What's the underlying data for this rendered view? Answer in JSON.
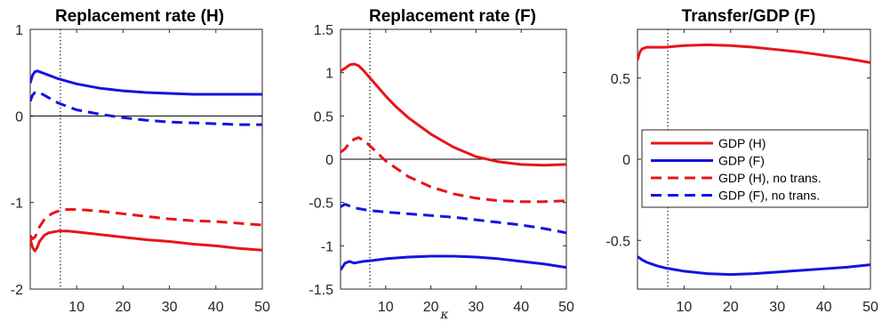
{
  "chart_data": [
    {
      "type": "line",
      "title": "Replacement rate (H)",
      "xlim": [
        0,
        50
      ],
      "ylim": [
        -2,
        1
      ],
      "xticks": [
        10,
        20,
        30,
        40,
        50
      ],
      "yticks": [
        -2,
        -1,
        0,
        1
      ],
      "vline": 6.5,
      "zero_line": true,
      "series": [
        {
          "legend_ref": 0,
          "color": "#e8141a",
          "dash": false,
          "x": [
            0,
            0.5,
            1,
            1.5,
            2,
            3,
            4,
            5,
            6,
            8,
            10,
            15,
            20,
            25,
            30,
            35,
            40,
            45,
            50
          ],
          "y": [
            -1.42,
            -1.52,
            -1.56,
            -1.52,
            -1.45,
            -1.38,
            -1.35,
            -1.34,
            -1.33,
            -1.33,
            -1.34,
            -1.37,
            -1.4,
            -1.43,
            -1.45,
            -1.48,
            -1.5,
            -1.53,
            -1.55
          ]
        },
        {
          "legend_ref": 1,
          "color": "#1414e0",
          "dash": false,
          "x": [
            0,
            0.5,
            1,
            1.5,
            2,
            3,
            4,
            5,
            6,
            8,
            10,
            15,
            20,
            25,
            30,
            35,
            40,
            45,
            50
          ],
          "y": [
            0.38,
            0.47,
            0.51,
            0.52,
            0.51,
            0.49,
            0.47,
            0.45,
            0.43,
            0.4,
            0.37,
            0.32,
            0.29,
            0.27,
            0.26,
            0.25,
            0.25,
            0.25,
            0.25
          ]
        },
        {
          "legend_ref": 2,
          "color": "#e8141a",
          "dash": true,
          "x": [
            0,
            0.5,
            1,
            1.5,
            2,
            3,
            4,
            5,
            6,
            8,
            10,
            15,
            20,
            25,
            30,
            35,
            40,
            45,
            50
          ],
          "y": [
            -1.38,
            -1.42,
            -1.4,
            -1.35,
            -1.28,
            -1.2,
            -1.15,
            -1.12,
            -1.1,
            -1.08,
            -1.08,
            -1.1,
            -1.13,
            -1.16,
            -1.19,
            -1.21,
            -1.22,
            -1.24,
            -1.26
          ]
        },
        {
          "legend_ref": 3,
          "color": "#1414e0",
          "dash": true,
          "x": [
            0,
            0.5,
            1,
            1.5,
            2,
            3,
            4,
            5,
            6,
            8,
            10,
            15,
            20,
            25,
            30,
            35,
            40,
            45,
            50
          ],
          "y": [
            0.17,
            0.24,
            0.27,
            0.28,
            0.27,
            0.24,
            0.21,
            0.18,
            0.15,
            0.11,
            0.07,
            0.02,
            -0.02,
            -0.05,
            -0.07,
            -0.08,
            -0.09,
            -0.1,
            -0.1
          ]
        }
      ]
    },
    {
      "type": "line",
      "title": "Replacement rate (F)",
      "xlim": [
        0,
        50
      ],
      "ylim": [
        -1.5,
        1.5
      ],
      "xticks": [
        10,
        20,
        30,
        40,
        50
      ],
      "yticks": [
        -1.5,
        -1,
        -0.5,
        0,
        0.5,
        1,
        1.5
      ],
      "extra_xtick_label": "κ",
      "vline": 6.5,
      "zero_line": true,
      "series": [
        {
          "legend_ref": 0,
          "color": "#e8141a",
          "dash": false,
          "x": [
            0,
            1,
            2,
            3,
            4,
            5,
            6,
            8,
            10,
            12,
            15,
            20,
            25,
            30,
            35,
            40,
            45,
            50
          ],
          "y": [
            1.02,
            1.05,
            1.09,
            1.1,
            1.08,
            1.03,
            0.97,
            0.85,
            0.73,
            0.62,
            0.48,
            0.29,
            0.14,
            0.03,
            -0.03,
            -0.06,
            -0.07,
            -0.06
          ]
        },
        {
          "legend_ref": 1,
          "color": "#1414e0",
          "dash": false,
          "x": [
            0,
            1,
            2,
            3,
            4,
            5,
            7,
            10,
            15,
            20,
            25,
            30,
            35,
            40,
            45,
            50
          ],
          "y": [
            -1.28,
            -1.2,
            -1.18,
            -1.2,
            -1.19,
            -1.18,
            -1.17,
            -1.15,
            -1.13,
            -1.12,
            -1.12,
            -1.13,
            -1.15,
            -1.18,
            -1.21,
            -1.25
          ]
        },
        {
          "legend_ref": 2,
          "color": "#e8141a",
          "dash": true,
          "x": [
            0,
            1,
            2,
            3,
            4,
            5,
            6,
            8,
            10,
            15,
            20,
            25,
            30,
            35,
            40,
            45,
            50
          ],
          "y": [
            0.08,
            0.12,
            0.19,
            0.23,
            0.25,
            0.22,
            0.18,
            0.08,
            -0.02,
            -0.2,
            -0.32,
            -0.4,
            -0.45,
            -0.48,
            -0.49,
            -0.49,
            -0.48
          ]
        },
        {
          "legend_ref": 3,
          "color": "#1414e0",
          "dash": true,
          "x": [
            0,
            1,
            2,
            3,
            4,
            5,
            6,
            8,
            10,
            15,
            20,
            25,
            30,
            35,
            40,
            45,
            50
          ],
          "y": [
            -0.55,
            -0.52,
            -0.54,
            -0.56,
            -0.57,
            -0.58,
            -0.59,
            -0.6,
            -0.61,
            -0.63,
            -0.65,
            -0.67,
            -0.7,
            -0.73,
            -0.76,
            -0.8,
            -0.85
          ]
        }
      ]
    },
    {
      "type": "line",
      "title": "Transfer/GDP (F)",
      "xlim": [
        0,
        50
      ],
      "ylim": [
        -0.8,
        0.8
      ],
      "xticks": [
        10,
        20,
        30,
        40,
        50
      ],
      "yticks": [
        -0.5,
        0,
        0.5
      ],
      "vline": 6.5,
      "zero_line": false,
      "legend": {
        "placement": "center",
        "entries": [
          "GDP (H)",
          "GDP (F)",
          "GDP (H), no trans.",
          "GDP (F), no trans."
        ]
      },
      "series": [
        {
          "legend_ref": 0,
          "color": "#e8141a",
          "dash": false,
          "x": [
            0,
            0.5,
            1,
            2,
            3,
            4,
            6,
            8,
            10,
            15,
            20,
            25,
            30,
            35,
            40,
            45,
            50
          ],
          "y": [
            0.61,
            0.66,
            0.68,
            0.69,
            0.69,
            0.69,
            0.69,
            0.695,
            0.7,
            0.705,
            0.7,
            0.69,
            0.675,
            0.66,
            0.64,
            0.62,
            0.595
          ]
        },
        {
          "legend_ref": 1,
          "color": "#1414e0",
          "dash": false,
          "x": [
            0,
            0.5,
            1,
            2,
            4,
            6,
            8,
            10,
            15,
            20,
            25,
            30,
            35,
            40,
            45,
            50
          ],
          "y": [
            -0.6,
            -0.61,
            -0.62,
            -0.635,
            -0.655,
            -0.67,
            -0.68,
            -0.69,
            -0.705,
            -0.71,
            -0.705,
            -0.695,
            -0.685,
            -0.675,
            -0.665,
            -0.65
          ]
        }
      ]
    }
  ]
}
